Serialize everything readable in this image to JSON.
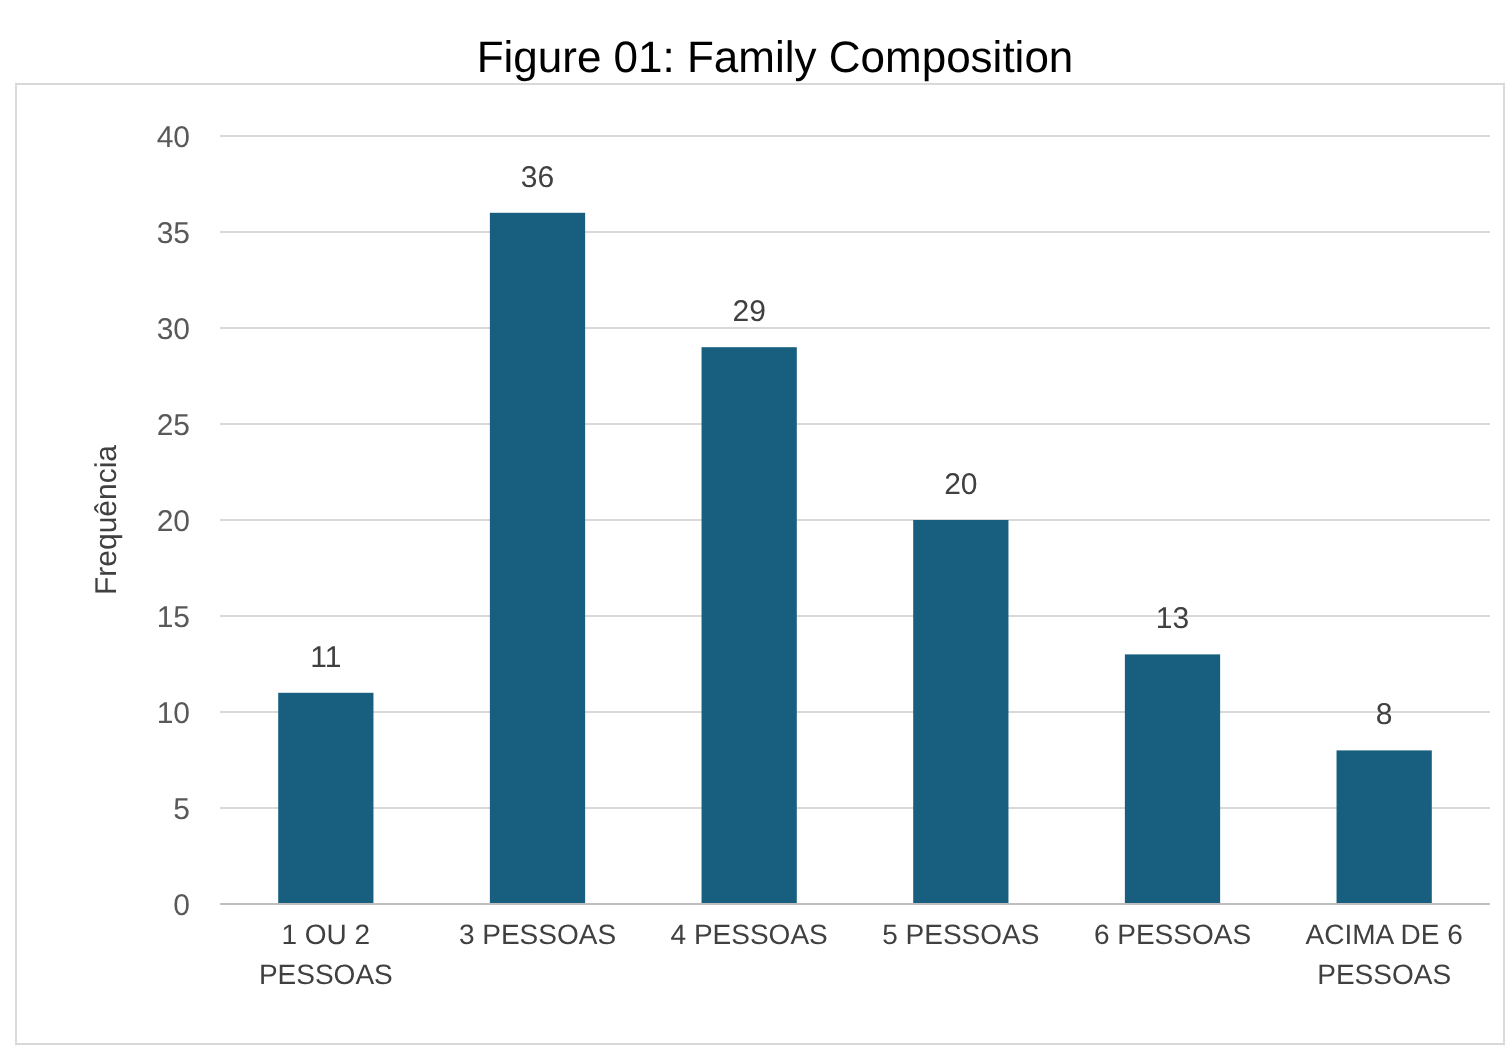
{
  "chart_data": {
    "type": "bar",
    "title": "Figure 01: Family Composition",
    "ylabel": "Frequência",
    "categories": [
      "1 OU 2 PESSOAS",
      "3 PESSOAS",
      "4 PESSOAS",
      "5 PESSOAS",
      "6 PESSOAS",
      "ACIMA DE 6 PESSOAS"
    ],
    "values": [
      11,
      36,
      29,
      20,
      13,
      8
    ],
    "color": "#175e7f",
    "ylim": [
      0,
      40
    ],
    "yticks": [
      0,
      5,
      10,
      15,
      20,
      25,
      30,
      35,
      40
    ],
    "grid": "y",
    "data_labels": true
  }
}
